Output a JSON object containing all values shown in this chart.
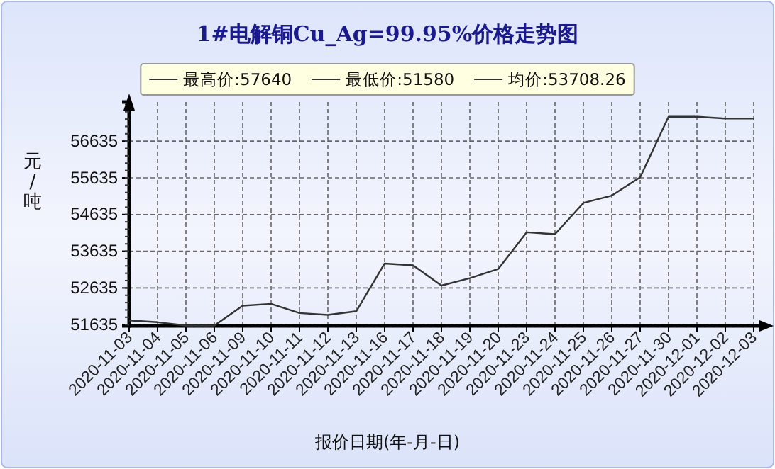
{
  "chart_data": {
    "type": "line",
    "title": "1#电解铜Cu_Ag=99.95%价格走势图",
    "xlabel": "报价日期(年-月-日)",
    "ylabel": "元/吨",
    "categories": [
      "2020-11-03",
      "2020-11-04",
      "2020-11-05",
      "2020-11-06",
      "2020-11-09",
      "2020-11-10",
      "2020-11-11",
      "2020-11-12",
      "2020-11-13",
      "2020-11-16",
      "2020-11-17",
      "2020-11-18",
      "2020-11-19",
      "2020-11-20",
      "2020-11-23",
      "2020-11-24",
      "2020-11-25",
      "2020-11-26",
      "2020-11-27",
      "2020-11-30",
      "2020-12-01",
      "2020-12-02",
      "2020-12-03"
    ],
    "series": [
      {
        "color": "#333333",
        "values": [
          51750,
          51700,
          51610,
          51610,
          52150,
          52200,
          51950,
          51900,
          52000,
          53300,
          53250,
          52700,
          52900,
          53150,
          54150,
          54100,
          54950,
          55150,
          55650,
          57300,
          57300,
          57250,
          57250
        ]
      }
    ],
    "ylim": [
      51600,
      57700
    ],
    "yticks": [
      51635,
      52635,
      53635,
      54635,
      55635,
      56635
    ],
    "grid": true,
    "annotations": [
      "最高价:57640",
      "最低价:51580",
      "均价:53708.26"
    ]
  }
}
